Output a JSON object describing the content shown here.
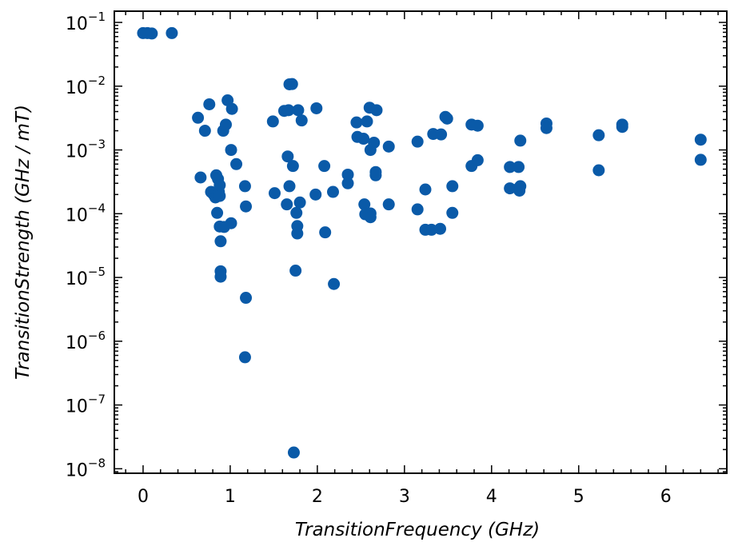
{
  "chart_data": {
    "type": "scatter",
    "title": "",
    "xlabel": "TransitionFrequency (GHz)",
    "ylabel": "TransitionStrength (GHz / mT)",
    "xlim": [
      -0.33,
      6.7
    ],
    "ylim": [
      8.5e-09,
      0.15
    ],
    "xscale": "linear",
    "yscale": "log",
    "grid": false,
    "marker_color": "#0a5aa8",
    "x_ticks": [
      {
        "value": 0,
        "label": "0"
      },
      {
        "value": 1,
        "label": "1"
      },
      {
        "value": 2,
        "label": "2"
      },
      {
        "value": 3,
        "label": "3"
      },
      {
        "value": 4,
        "label": "4"
      },
      {
        "value": 5,
        "label": "5"
      },
      {
        "value": 6,
        "label": "6"
      }
    ],
    "y_ticks": [
      {
        "value": 1e-08,
        "base": "10",
        "exponent": "−8"
      },
      {
        "value": 1e-07,
        "base": "10",
        "exponent": "−7"
      },
      {
        "value": 1e-06,
        "base": "10",
        "exponent": "−6"
      },
      {
        "value": 1e-05,
        "base": "10",
        "exponent": "−5"
      },
      {
        "value": 0.0001,
        "base": "10",
        "exponent": "−4"
      },
      {
        "value": 0.001,
        "base": "10",
        "exponent": "−3"
      },
      {
        "value": 0.01,
        "base": "10",
        "exponent": "−2"
      },
      {
        "value": 0.1,
        "base": "10",
        "exponent": "−1"
      }
    ],
    "points": [
      [
        0.0,
        0.068
      ],
      [
        0.05,
        0.068
      ],
      [
        0.1,
        0.067
      ],
      [
        0.33,
        0.068
      ],
      [
        0.63,
        0.0032
      ],
      [
        0.66,
        0.00037
      ],
      [
        0.71,
        0.002
      ],
      [
        0.76,
        0.0052
      ],
      [
        0.78,
        0.00022
      ],
      [
        0.81,
        0.0002
      ],
      [
        0.83,
        0.00018
      ],
      [
        0.84,
        0.0004
      ],
      [
        0.85,
        0.000103
      ],
      [
        0.86,
        0.00035
      ],
      [
        0.87,
        0.00022
      ],
      [
        0.88,
        0.00028
      ],
      [
        0.88,
        0.00019
      ],
      [
        0.88,
        6.3e-05
      ],
      [
        0.89,
        3.7e-05
      ],
      [
        0.89,
        1.25e-05
      ],
      [
        0.89,
        1.03e-05
      ],
      [
        0.92,
        0.002
      ],
      [
        0.93,
        6.2e-05
      ],
      [
        0.95,
        0.0025
      ],
      [
        0.97,
        0.006
      ],
      [
        1.01,
        0.001
      ],
      [
        1.01,
        7.1e-05
      ],
      [
        1.02,
        0.0044
      ],
      [
        1.07,
        0.0006
      ],
      [
        1.17,
        0.00027
      ],
      [
        1.18,
        0.00013
      ],
      [
        1.18,
        4.8e-06
      ],
      [
        1.17,
        5.6e-07
      ],
      [
        1.49,
        0.0028
      ],
      [
        1.51,
        0.00021
      ],
      [
        1.62,
        0.0041
      ],
      [
        1.65,
        0.00014
      ],
      [
        1.66,
        0.00079
      ],
      [
        1.67,
        0.0042
      ],
      [
        1.68,
        0.00027
      ],
      [
        1.68,
        0.0107
      ],
      [
        1.71,
        0.0108
      ],
      [
        1.72,
        0.00056
      ],
      [
        1.73,
        1.8e-08
      ],
      [
        1.75,
        1.28e-05
      ],
      [
        1.76,
        0.000103
      ],
      [
        1.77,
        6.4e-05
      ],
      [
        1.77,
        4.9e-05
      ],
      [
        1.78,
        0.0042
      ],
      [
        1.8,
        0.00015
      ],
      [
        1.82,
        0.0029
      ],
      [
        1.98,
        0.0002
      ],
      [
        1.99,
        0.0045
      ],
      [
        2.08,
        0.00056
      ],
      [
        2.09,
        5.1e-05
      ],
      [
        2.18,
        0.00022
      ],
      [
        2.19,
        7.9e-06
      ],
      [
        2.35,
        0.00041
      ],
      [
        2.35,
        0.0003
      ],
      [
        2.45,
        0.0027
      ],
      [
        2.46,
        0.0016
      ],
      [
        2.53,
        0.0015
      ],
      [
        2.54,
        0.00014
      ],
      [
        2.55,
        9.8e-05
      ],
      [
        2.57,
        0.0028
      ],
      [
        2.6,
        0.0046
      ],
      [
        2.61,
        0.001
      ],
      [
        2.61,
        0.000101
      ],
      [
        2.61,
        8.8e-05
      ],
      [
        2.65,
        0.0013
      ],
      [
        2.67,
        0.00045
      ],
      [
        2.67,
        0.0004
      ],
      [
        2.68,
        0.0042
      ],
      [
        2.82,
        0.00113
      ],
      [
        2.82,
        0.00014
      ],
      [
        3.15,
        0.00135
      ],
      [
        3.15,
        0.000117
      ],
      [
        3.24,
        0.00024
      ],
      [
        3.24,
        5.6e-05
      ],
      [
        3.31,
        5.6e-05
      ],
      [
        3.33,
        0.00178
      ],
      [
        3.41,
        5.8e-05
      ],
      [
        3.42,
        0.00175
      ],
      [
        3.47,
        0.0033
      ],
      [
        3.49,
        0.0031
      ],
      [
        3.55,
        0.00027
      ],
      [
        3.55,
        0.000103
      ],
      [
        3.77,
        0.0025
      ],
      [
        3.77,
        0.00056
      ],
      [
        3.84,
        0.0024
      ],
      [
        3.84,
        0.00069
      ],
      [
        4.21,
        0.00054
      ],
      [
        4.21,
        0.00025
      ],
      [
        4.31,
        0.00054
      ],
      [
        4.31,
        0.00025
      ],
      [
        4.32,
        0.00023
      ],
      [
        4.33,
        0.0014
      ],
      [
        4.33,
        0.00027
      ],
      [
        4.63,
        0.0026
      ],
      [
        4.63,
        0.0022
      ],
      [
        5.23,
        0.0017
      ],
      [
        5.23,
        0.00048
      ],
      [
        5.5,
        0.0025
      ],
      [
        5.5,
        0.0023
      ],
      [
        6.4,
        0.00145
      ],
      [
        6.4,
        0.0007
      ]
    ]
  }
}
